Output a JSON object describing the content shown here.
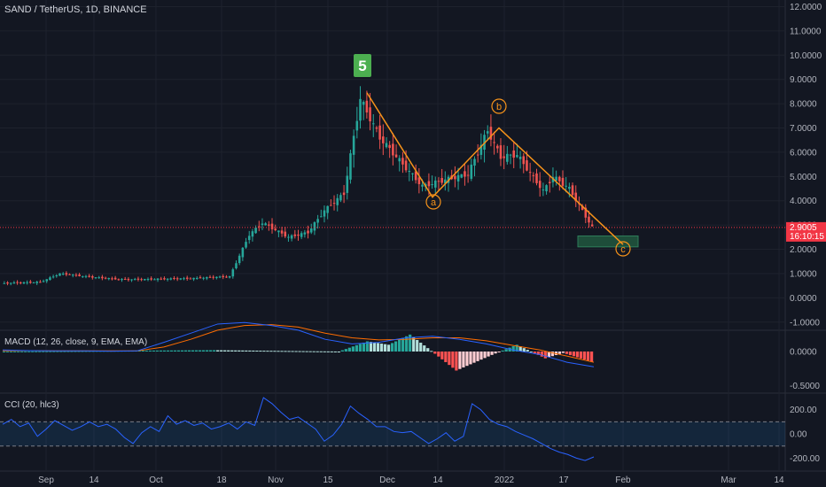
{
  "header": {
    "symbol_title": "SAND / TetherUS, 1D, BINANCE"
  },
  "colors": {
    "background": "#131722",
    "up": "#26a69a",
    "down": "#ef5350",
    "wave_line": "#f7931a",
    "wave_label_bg": "#4caf50",
    "macd_line": "#2962ff",
    "signal_line": "#ff6d00",
    "cci_line": "#2962ff",
    "price_tag": "#f23645",
    "target_zone": "#1e4d3a"
  },
  "price_tag": {
    "price": "2.9005",
    "countdown": "16:10:15"
  },
  "chart_data": [
    {
      "type": "candlestick",
      "title": "SAND / TetherUS, 1D, BINANCE",
      "yticks": [
        "12.0000",
        "11.0000",
        "10.0000",
        "9.0000",
        "8.0000",
        "7.0000",
        "6.0000",
        "5.0000",
        "4.0000",
        "3.0000",
        "2.0000",
        "1.0000",
        "0.0000",
        "-1.0000"
      ],
      "ylim": [
        -1.3,
        12.2
      ],
      "xticks": [
        "Sep",
        "14",
        "Oct",
        "18",
        "Nov",
        "15",
        "Dec",
        "14",
        "2022",
        "17",
        "Feb",
        "Mar",
        "14"
      ],
      "last_price": 2.9005,
      "elliott_wave": {
        "labels": [
          {
            "text": "5",
            "style": "box",
            "price": 8.45
          },
          {
            "text": "a",
            "style": "circle",
            "price": 4.15
          },
          {
            "text": "b",
            "style": "circle",
            "price": 7.0
          },
          {
            "text": "c",
            "style": "circle",
            "price": 2.2
          }
        ],
        "path_prices": [
          8.45,
          4.15,
          7.0,
          2.2
        ]
      },
      "target_zone": {
        "low": 2.1,
        "high": 2.55
      },
      "ohlc_segments": [
        {
          "from": 0.6,
          "to": 0.65,
          "n": 12
        },
        {
          "from": 0.65,
          "to": 1.0,
          "n": 6
        },
        {
          "from": 1.0,
          "to": 0.85,
          "n": 10
        },
        {
          "from": 0.85,
          "to": 0.75,
          "n": 10
        },
        {
          "from": 0.75,
          "to": 0.8,
          "n": 20
        },
        {
          "from": 0.8,
          "to": 0.88,
          "n": 12
        },
        {
          "from": 0.88,
          "to": 2.6,
          "n": 6
        },
        {
          "from": 2.6,
          "to": 3.1,
          "n": 4
        },
        {
          "from": 3.1,
          "to": 2.5,
          "n": 8
        },
        {
          "from": 2.5,
          "to": 2.7,
          "n": 6
        },
        {
          "from": 2.7,
          "to": 3.6,
          "n": 5
        },
        {
          "from": 3.6,
          "to": 4.3,
          "n": 6
        },
        {
          "from": 4.3,
          "to": 8.2,
          "n": 5
        },
        {
          "from": 8.2,
          "to": 6.6,
          "n": 6
        },
        {
          "from": 6.6,
          "to": 5.5,
          "n": 7
        },
        {
          "from": 5.5,
          "to": 4.6,
          "n": 6
        },
        {
          "from": 4.6,
          "to": 4.9,
          "n": 8
        },
        {
          "from": 4.9,
          "to": 5.1,
          "n": 6
        },
        {
          "from": 5.1,
          "to": 6.9,
          "n": 6
        },
        {
          "from": 6.9,
          "to": 5.8,
          "n": 4
        },
        {
          "from": 5.8,
          "to": 5.9,
          "n": 5
        },
        {
          "from": 5.9,
          "to": 4.4,
          "n": 8
        },
        {
          "from": 4.4,
          "to": 5.0,
          "n": 3
        },
        {
          "from": 5.0,
          "to": 4.5,
          "n": 5
        },
        {
          "from": 4.5,
          "to": 2.9,
          "n": 7
        }
      ]
    },
    {
      "type": "bar",
      "title": "MACD (12, 26, close, 9, EMA, EMA)",
      "yticks": [
        "0.0000",
        "-0.5000"
      ],
      "ylim": [
        -0.6,
        0.3
      ],
      "series": [
        {
          "name": "MACD",
          "values_desc": "line"
        },
        {
          "name": "Signal",
          "values_desc": "line"
        },
        {
          "name": "Histogram",
          "values_desc": "bars"
        }
      ],
      "histogram_segments": [
        {
          "from": 0.0,
          "to": 0.02,
          "n": 60
        },
        {
          "from": 0.02,
          "to": 0.0,
          "n": 35
        },
        {
          "from": 0.0,
          "to": 0.15,
          "n": 8
        },
        {
          "from": 0.15,
          "to": 0.1,
          "n": 6
        },
        {
          "from": 0.1,
          "to": 0.25,
          "n": 6
        },
        {
          "from": 0.25,
          "to": 0.05,
          "n": 5
        },
        {
          "from": 0.05,
          "to": -0.28,
          "n": 8
        },
        {
          "from": -0.28,
          "to": -0.05,
          "n": 10
        },
        {
          "from": -0.05,
          "to": 0.1,
          "n": 7
        },
        {
          "from": 0.1,
          "to": -0.1,
          "n": 8
        },
        {
          "from": -0.1,
          "to": -0.02,
          "n": 5
        },
        {
          "from": -0.02,
          "to": -0.15,
          "n": 8
        }
      ],
      "macd_points": [
        0.05,
        0.03,
        0.02,
        0.02,
        0.01,
        0.02,
        0.3,
        0.6,
        0.9,
        0.95,
        0.85,
        0.7,
        0.4,
        0.25,
        0.3,
        0.45,
        0.5,
        0.4,
        0.25,
        0.05,
        -0.1,
        -0.35,
        -0.5
      ],
      "signal_points": [
        0.03,
        0.03,
        0.02,
        0.02,
        0.02,
        0.02,
        0.15,
        0.4,
        0.7,
        0.85,
        0.88,
        0.8,
        0.6,
        0.45,
        0.38,
        0.4,
        0.45,
        0.45,
        0.35,
        0.2,
        0.05,
        -0.15,
        -0.35
      ]
    },
    {
      "type": "line",
      "title": "CCI (20, hlc3)",
      "yticks": [
        "200.00",
        "0.00",
        "-200.00"
      ],
      "ylim": [
        -300,
        330
      ],
      "band": [
        100,
        -100
      ],
      "values": [
        80,
        120,
        60,
        90,
        -20,
        40,
        110,
        70,
        30,
        60,
        100,
        60,
        80,
        40,
        -30,
        -80,
        10,
        60,
        20,
        150,
        80,
        110,
        70,
        90,
        40,
        60,
        90,
        40,
        100,
        70,
        300,
        250,
        180,
        120,
        140,
        90,
        40,
        -60,
        -10,
        80,
        230,
        170,
        120,
        60,
        60,
        20,
        10,
        20,
        -30,
        -80,
        -40,
        10,
        -60,
        -20,
        250,
        200,
        120,
        80,
        60,
        20,
        -10,
        -40,
        -80,
        -120,
        -150,
        -170,
        -200,
        -220,
        -190
      ]
    }
  ]
}
